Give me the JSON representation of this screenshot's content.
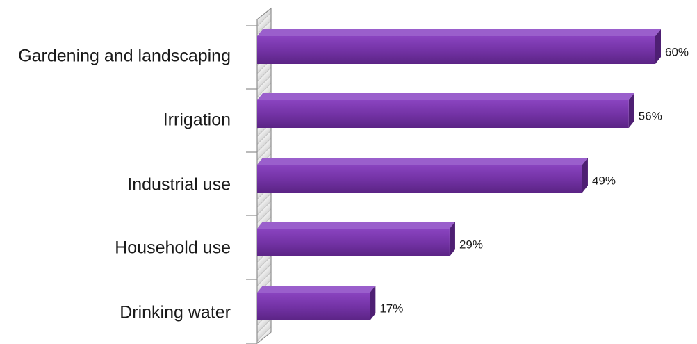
{
  "chart_data": {
    "type": "bar",
    "orientation": "horizontal",
    "style": "3d",
    "categories": [
      "Gardening and landscaping",
      "Irrigation",
      "Industrial use",
      "Household use",
      "Drinking water"
    ],
    "values": [
      60,
      56,
      49,
      29,
      17
    ],
    "value_labels": [
      "60%",
      "56%",
      "49%",
      "29%",
      "17%"
    ],
    "xlim": [
      0,
      60
    ],
    "grid": false,
    "legend": "none",
    "bar_color": "#7030a0"
  }
}
